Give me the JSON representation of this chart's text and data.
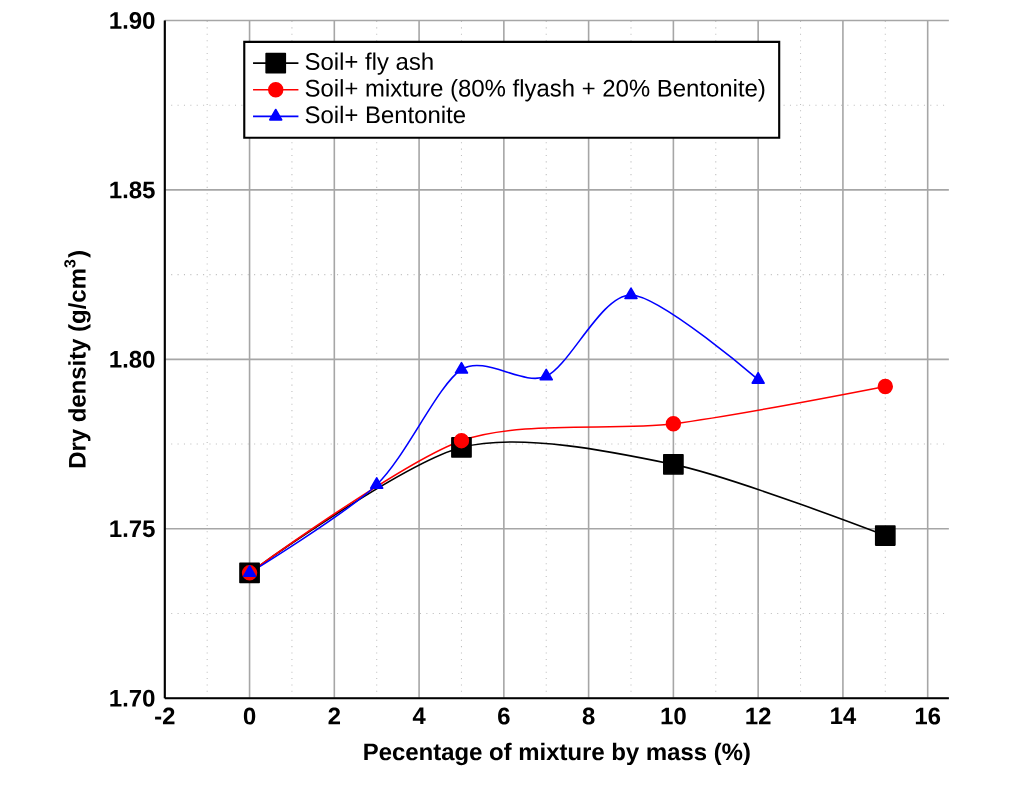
{
  "chart_data": {
    "type": "line",
    "xlabel": "Pecentage of mixture by mass (%)",
    "ylabel": "Dry density (g/cm$^{3}$)",
    "xlim": [
      -2,
      16.5
    ],
    "ylim": [
      1.7,
      1.9
    ],
    "xticks": [
      -2,
      0,
      2,
      4,
      6,
      8,
      10,
      12,
      14,
      16
    ],
    "yticks": [
      {
        "value": 1.7,
        "label": "1.70"
      },
      {
        "value": 1.75,
        "label": "1.75"
      },
      {
        "value": 1.8,
        "label": "1.80"
      },
      {
        "value": 1.85,
        "label": "1.85"
      },
      {
        "value": 1.9,
        "label": "1.90"
      }
    ],
    "grid": true,
    "legend": "top left",
    "series": [
      {
        "name": "Soil+ fly ash",
        "color": "#000000",
        "marker": "square",
        "x": [
          0,
          5,
          10,
          15
        ],
        "values": [
          1.737,
          1.774,
          1.769,
          1.748
        ]
      },
      {
        "name": "Soil+ mixture (80% flyash + 20% Bentonite)",
        "color": "#ff0000",
        "marker": "circle",
        "x": [
          0,
          5,
          10,
          15
        ],
        "values": [
          1.737,
          1.776,
          1.781,
          1.792
        ]
      },
      {
        "name": "Soil+ Bentonite",
        "color": "#0000ff",
        "marker": "triangle",
        "x": [
          0,
          3,
          5,
          7,
          9,
          12
        ],
        "values": [
          1.737,
          1.763,
          1.797,
          1.795,
          1.819,
          1.794
        ]
      }
    ]
  }
}
